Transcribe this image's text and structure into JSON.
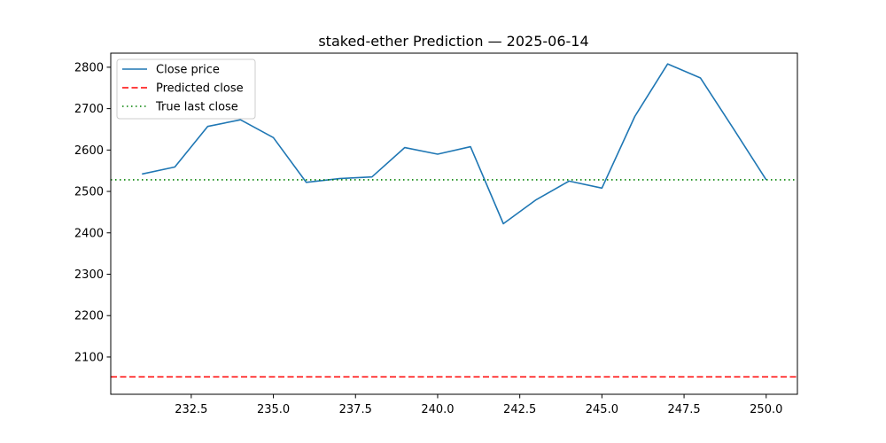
{
  "chart_data": {
    "type": "line",
    "title": "staked-ether Prediction — 2025-06-14",
    "xlabel": "",
    "ylabel": "",
    "xlim": [
      230.05,
      250.95
    ],
    "ylim": [
      2010,
      2834
    ],
    "x_ticks": [
      232.5,
      235.0,
      237.5,
      240.0,
      242.5,
      245.0,
      247.5,
      250.0
    ],
    "x_tick_labels": [
      "232.5",
      "235.0",
      "237.5",
      "240.0",
      "242.5",
      "245.0",
      "247.5",
      "250.0"
    ],
    "y_ticks": [
      2100,
      2200,
      2300,
      2400,
      2500,
      2600,
      2700,
      2800
    ],
    "y_tick_labels": [
      "2100",
      "2200",
      "2300",
      "2400",
      "2500",
      "2600",
      "2700",
      "2800"
    ],
    "grid": false,
    "legend_position": "top-left",
    "series": [
      {
        "name": "Close price",
        "style": "solid",
        "color": "#1f77b4",
        "x": [
          231,
          232,
          233,
          234,
          235,
          236,
          237,
          238,
          239,
          240,
          241,
          242,
          243,
          244,
          245,
          246,
          247,
          248,
          249,
          250
        ],
        "y": [
          2542,
          2559,
          2657,
          2673,
          2630,
          2522,
          2531,
          2535,
          2606,
          2590,
          2608,
          2422,
          2480,
          2525,
          2508,
          2681,
          2808,
          2774,
          2652,
          2528
        ]
      },
      {
        "name": "Predicted close",
        "style": "dashed",
        "color": "#ff0000",
        "y_value": 2052
      },
      {
        "name": "True last close",
        "style": "dotted",
        "color": "#008000",
        "y_value": 2528
      }
    ]
  }
}
